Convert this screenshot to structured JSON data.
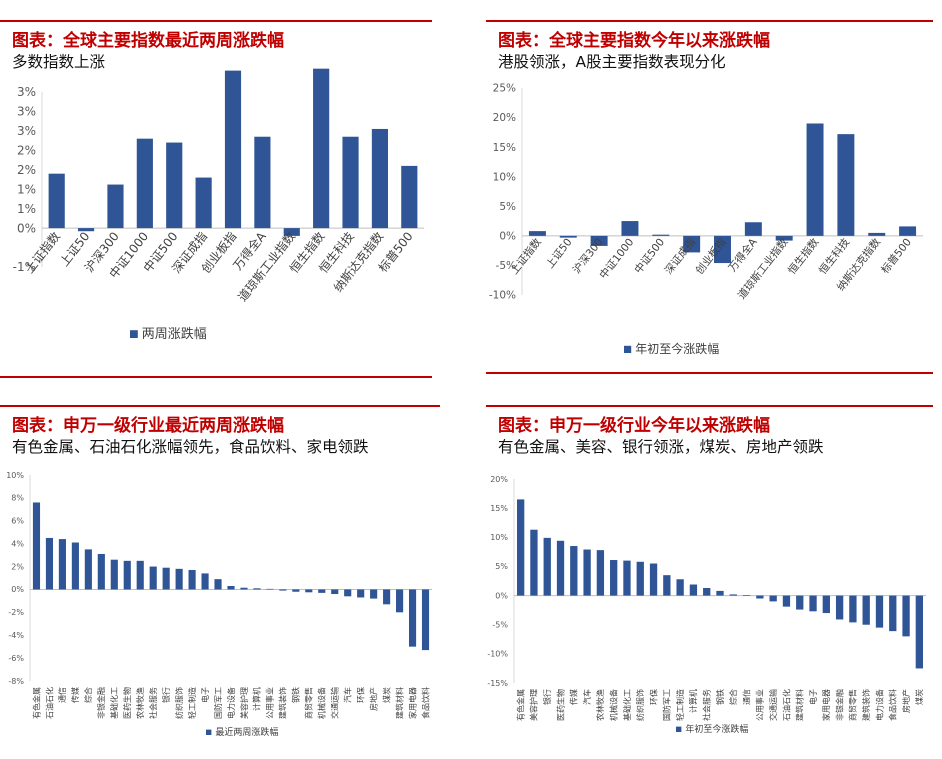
{
  "colors": {
    "accent": "#c00000",
    "bar": "#2f5597",
    "axis": "#bfbfbf",
    "tick": "#595959"
  },
  "panels": [
    {
      "title": "图表：全球主要指数最近两周涨跌幅",
      "subtitle": "多数指数上涨",
      "chart_data": {
        "type": "bar",
        "categories": [
          "上证指数",
          "上证50",
          "沪深300",
          "中证1000",
          "中证500",
          "深证成指",
          "创业板指",
          "万得全A",
          "道琼斯工业指数",
          "恒生指数",
          "恒生科技",
          "纳斯达克指数",
          "标普500"
        ],
        "series": [
          {
            "name": "两周涨跌幅",
            "values": [
              1.4,
              -0.08,
              1.12,
              2.3,
              2.2,
              1.3,
              4.05,
              2.35,
              -0.2,
              4.1,
              2.35,
              2.55,
              1.6
            ]
          }
        ],
        "y_ticks": [
          -1,
          0,
          0.5,
          1,
          1.5,
          2,
          2.5,
          3,
          3.5
        ],
        "y_tick_labels": [
          "-1%",
          "0%",
          "1%",
          "1%",
          "2%",
          "2%",
          "3%",
          "3%",
          "3%"
        ],
        "legend": "bottom",
        "grid": false
      }
    },
    {
      "title": "图表：全球主要指数今年以来涨跌幅",
      "subtitle": "港股领涨，A股主要指数表现分化",
      "chart_data": {
        "type": "bar",
        "categories": [
          "上证指数",
          "上证50",
          "沪深300",
          "中证1000",
          "中证500",
          "深证成指",
          "创业板指",
          "万得全A",
          "道琼斯工业指数",
          "恒生指数",
          "恒生科技",
          "纳斯达克指数",
          "标普500"
        ],
        "series": [
          {
            "name": "年初至今涨跌幅",
            "values": [
              0.8,
              -0.3,
              -1.7,
              2.5,
              0.2,
              -2.8,
              -4.6,
              2.3,
              -0.8,
              19.0,
              17.2,
              0.5,
              1.6
            ]
          }
        ],
        "y_ticks": [
          -10,
          -5,
          0,
          5,
          10,
          15,
          20,
          25
        ],
        "y_tick_labels": [
          "-10%",
          "-5%",
          "0%",
          "5%",
          "10%",
          "15%",
          "20%",
          "25%"
        ],
        "legend": "bottom",
        "grid": false
      }
    },
    {
      "title": "图表：申万一级行业最近两周涨跌幅",
      "subtitle": "有色金属、石油石化涨幅领先，食品饮料、家电领跌",
      "chart_data": {
        "type": "bar",
        "categories": [
          "有色金属",
          "石油石化",
          "通信",
          "传媒",
          "综合",
          "非银金融",
          "基础化工",
          "医药生物",
          "农林牧渔",
          "社会服务",
          "银行",
          "纺织服饰",
          "轻工制造",
          "电子",
          "国防军工",
          "电力设备",
          "美容护理",
          "计算机",
          "公用事业",
          "建筑装饰",
          "钢铁",
          "商贸零售",
          "机械设备",
          "交通运输",
          "汽车",
          "环保",
          "房地产",
          "煤炭",
          "建筑材料",
          "家用电器",
          "食品饮料"
        ],
        "series": [
          {
            "name": "最近两周涨跌幅",
            "values": [
              7.6,
              4.5,
              4.4,
              4.1,
              3.5,
              3.1,
              2.6,
              2.5,
              2.5,
              2.0,
              1.9,
              1.8,
              1.7,
              1.4,
              0.9,
              0.3,
              0.15,
              0.1,
              0.05,
              -0.1,
              -0.2,
              -0.25,
              -0.3,
              -0.4,
              -0.6,
              -0.7,
              -0.8,
              -1.3,
              -2.0,
              -5.0,
              -5.3
            ]
          }
        ],
        "y_ticks": [
          -8,
          -6,
          -4,
          -2,
          0,
          2,
          4,
          6,
          8,
          10
        ],
        "y_tick_labels": [
          "-8%",
          "-6%",
          "-4%",
          "-2%",
          "0%",
          "2%",
          "4%",
          "6%",
          "8%",
          "10%"
        ],
        "legend": "bottom",
        "grid": false
      }
    },
    {
      "title": "图表：申万一级行业今年以来涨跌幅",
      "subtitle": "有色金属、美容、银行领涨，煤炭、房地产领跌",
      "chart_data": {
        "type": "bar",
        "categories": [
          "有色金属",
          "美容护理",
          "银行",
          "医药生物",
          "传媒",
          "汽车",
          "农林牧渔",
          "机械设备",
          "基础化工",
          "纺织服饰",
          "环保",
          "国防军工",
          "轻工制造",
          "计算机",
          "社会服务",
          "钢铁",
          "综合",
          "通信",
          "公用事业",
          "交通运输",
          "石油石化",
          "建筑材料",
          "电子",
          "家用电器",
          "非银金融",
          "商贸零售",
          "建筑装饰",
          "电力设备",
          "食品饮料",
          "房地产",
          "煤炭"
        ],
        "series": [
          {
            "name": "年初至今涨跌幅",
            "values": [
              16.5,
              11.3,
              9.9,
              9.4,
              8.5,
              7.9,
              7.8,
              6.1,
              6.0,
              5.8,
              5.5,
              3.5,
              2.8,
              1.9,
              1.3,
              0.8,
              0.2,
              0.1,
              -0.5,
              -1.0,
              -1.9,
              -2.4,
              -2.7,
              -3.0,
              -4.1,
              -4.6,
              -5.0,
              -5.5,
              -6.1,
              -7.0,
              -12.5
            ]
          }
        ],
        "y_ticks": [
          -15,
          -10,
          -5,
          0,
          5,
          10,
          15,
          20
        ],
        "y_tick_labels": [
          "-15%",
          "-10%",
          "-5%",
          "0%",
          "5%",
          "10%",
          "15%",
          "20%"
        ],
        "legend": "bottom",
        "grid": false
      }
    }
  ]
}
